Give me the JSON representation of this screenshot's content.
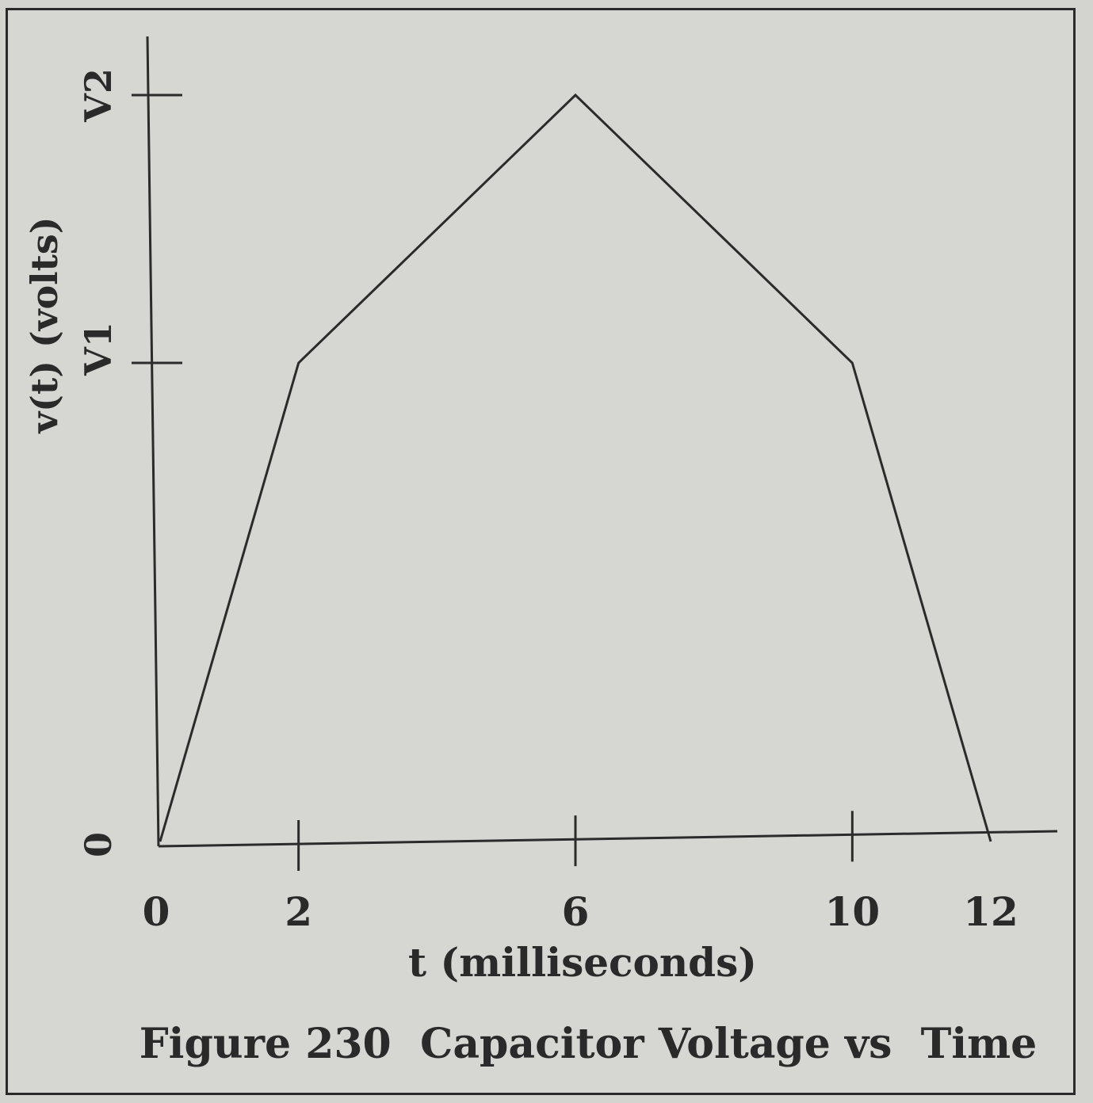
{
  "chart_data": {
    "type": "line",
    "title": "Figure 230  Capacitor Voltage vs  Time",
    "xlabel": "t (milliseconds)",
    "ylabel": "v(t) (volts)",
    "x_ticks": [
      "0",
      "2",
      "6",
      "10",
      "12"
    ],
    "y_ticks": [
      {
        "label": "0",
        "value": 0
      },
      {
        "label": "V1",
        "value": 1
      },
      {
        "label": "V2",
        "value": 2
      }
    ],
    "xlim": [
      0,
      12
    ],
    "ylim": [
      0,
      2
    ],
    "grid": false,
    "series": [
      {
        "x": [
          0,
          2,
          6,
          10,
          12
        ],
        "y": [
          0,
          1,
          2,
          1,
          0
        ]
      }
    ]
  },
  "colors": {
    "background": "#d6d6d3",
    "ink": "#2b2b2b"
  }
}
